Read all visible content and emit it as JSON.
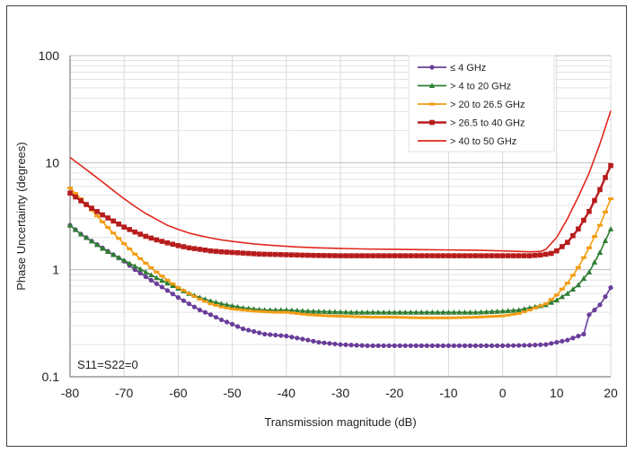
{
  "chart_data": {
    "type": "line",
    "xlabel": "Transmission magnitude (dB)",
    "ylabel": "Phase Uncertainty (degrees)",
    "xlim": [
      -80,
      20
    ],
    "ylim": [
      0.1,
      100
    ],
    "y_scale": "log",
    "x_ticks": [
      "-80",
      "-70",
      "-60",
      "-50",
      "-40",
      "-30",
      "-20",
      "-10",
      "0",
      "10",
      "20"
    ],
    "y_ticks": [
      "0.1",
      "1",
      "10",
      "100"
    ],
    "grid": true,
    "legend_position": "top-right",
    "annotation": "S11=S22=0",
    "series": [
      {
        "name": "≤ 4 GHz",
        "color": "#6a3d9a",
        "marker": "circle",
        "x": [
          -80,
          -78,
          -76,
          -74,
          -72,
          -70,
          -68,
          -66,
          -64,
          -62,
          -60,
          -58,
          -56,
          -54,
          -52,
          -50,
          -48,
          -46,
          -44,
          -42,
          -40,
          -38,
          -36,
          -34,
          -32,
          -30,
          -25,
          -20,
          -15,
          -10,
          -5,
          0,
          5,
          8,
          10,
          12,
          14,
          15,
          16,
          17,
          18,
          19,
          20
        ],
        "y": [
          2.6,
          2.15,
          1.85,
          1.6,
          1.38,
          1.2,
          1.0,
          0.86,
          0.74,
          0.64,
          0.55,
          0.48,
          0.42,
          0.38,
          0.34,
          0.31,
          0.28,
          0.265,
          0.25,
          0.245,
          0.24,
          0.23,
          0.22,
          0.21,
          0.205,
          0.2,
          0.195,
          0.195,
          0.195,
          0.195,
          0.195,
          0.195,
          0.197,
          0.2,
          0.21,
          0.22,
          0.24,
          0.25,
          0.38,
          0.42,
          0.47,
          0.56,
          0.68
        ]
      },
      {
        "name": "> 4 to 20 GHz",
        "color": "#2e7d32",
        "marker": "triangle",
        "x": [
          -80,
          -78,
          -76,
          -74,
          -72,
          -70,
          -68,
          -66,
          -64,
          -62,
          -60,
          -58,
          -56,
          -54,
          -52,
          -50,
          -48,
          -46,
          -44,
          -40,
          -36,
          -32,
          -28,
          -24,
          -20,
          -15,
          -10,
          -5,
          0,
          3,
          5,
          8,
          10,
          12,
          14,
          16,
          18,
          20
        ],
        "y": [
          2.6,
          2.15,
          1.85,
          1.58,
          1.38,
          1.22,
          1.08,
          0.95,
          0.84,
          0.75,
          0.67,
          0.6,
          0.55,
          0.51,
          0.48,
          0.46,
          0.44,
          0.43,
          0.42,
          0.42,
          0.41,
          0.405,
          0.4,
          0.4,
          0.4,
          0.4,
          0.4,
          0.4,
          0.41,
          0.42,
          0.44,
          0.47,
          0.52,
          0.6,
          0.72,
          0.95,
          1.45,
          2.4
        ]
      },
      {
        "name": "> 20 to 26.5 GHz",
        "color": "#f39c12",
        "marker": "dash",
        "x": [
          -80,
          -78,
          -76,
          -74,
          -72,
          -70,
          -68,
          -66,
          -64,
          -62,
          -60,
          -58,
          -56,
          -54,
          -52,
          -50,
          -48,
          -46,
          -44,
          -42,
          -40,
          -36,
          -32,
          -28,
          -24,
          -20,
          -15,
          -10,
          -5,
          0,
          3,
          5,
          8,
          10,
          12,
          14,
          16,
          18,
          20
        ],
        "y": [
          5.8,
          4.6,
          3.6,
          2.8,
          2.2,
          1.75,
          1.4,
          1.15,
          0.95,
          0.8,
          0.68,
          0.6,
          0.53,
          0.48,
          0.45,
          0.43,
          0.42,
          0.41,
          0.405,
          0.4,
          0.4,
          0.38,
          0.37,
          0.365,
          0.36,
          0.36,
          0.355,
          0.355,
          0.36,
          0.37,
          0.39,
          0.42,
          0.48,
          0.58,
          0.75,
          1.05,
          1.6,
          2.6,
          4.6
        ]
      },
      {
        "name": "> 26.5 to 40 GHz",
        "color": "#b71c1c",
        "marker": "square",
        "x": [
          -80,
          -78,
          -76,
          -74,
          -72,
          -70,
          -68,
          -66,
          -64,
          -62,
          -60,
          -58,
          -56,
          -54,
          -52,
          -50,
          -45,
          -40,
          -35,
          -30,
          -25,
          -20,
          -15,
          -10,
          -5,
          0,
          3,
          5,
          7,
          9,
          10,
          12,
          14,
          16,
          18,
          20
        ],
        "y": [
          5.2,
          4.4,
          3.75,
          3.25,
          2.85,
          2.5,
          2.25,
          2.05,
          1.9,
          1.78,
          1.68,
          1.6,
          1.55,
          1.5,
          1.47,
          1.45,
          1.4,
          1.38,
          1.36,
          1.35,
          1.35,
          1.35,
          1.35,
          1.35,
          1.35,
          1.35,
          1.35,
          1.35,
          1.37,
          1.42,
          1.5,
          1.8,
          2.4,
          3.5,
          5.6,
          9.4
        ]
      },
      {
        "name": "> 40 to 50 GHz",
        "color": "#e0281e",
        "marker": "none",
        "x": [
          -80,
          -78,
          -76,
          -74,
          -72,
          -70,
          -68,
          -66,
          -64,
          -62,
          -60,
          -58,
          -56,
          -54,
          -52,
          -50,
          -46,
          -42,
          -38,
          -34,
          -30,
          -25,
          -20,
          -15,
          -10,
          -5,
          0,
          3,
          5,
          7,
          8,
          10,
          12,
          14,
          16,
          18,
          20
        ],
        "y": [
          11.2,
          9.4,
          7.9,
          6.6,
          5.5,
          4.6,
          3.9,
          3.35,
          2.95,
          2.6,
          2.38,
          2.2,
          2.08,
          1.98,
          1.9,
          1.84,
          1.74,
          1.68,
          1.63,
          1.6,
          1.58,
          1.56,
          1.55,
          1.54,
          1.53,
          1.52,
          1.5,
          1.48,
          1.47,
          1.48,
          1.55,
          2.0,
          3.0,
          4.8,
          8.0,
          15.0,
          30.5
        ]
      }
    ]
  }
}
